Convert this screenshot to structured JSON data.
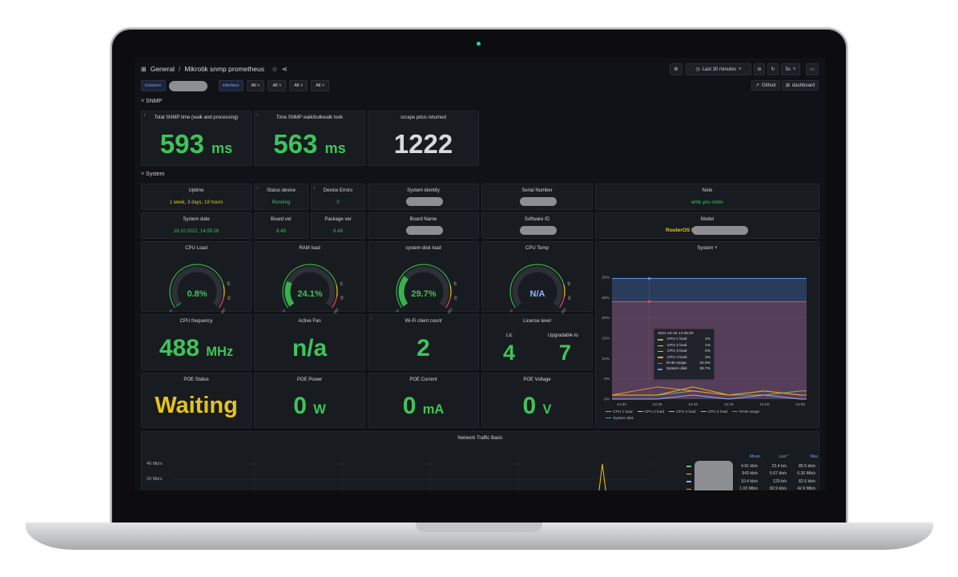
{
  "breadcrumb": {
    "folder": "General",
    "separator": "/",
    "dashboard": "Mikrotik snmp prometheus"
  },
  "toolbar": {
    "time_range": "Last 30 minutes",
    "refresh": "5s",
    "github": "Github",
    "dashboard": "dashboard"
  },
  "variables": [
    {
      "label": "instance",
      "value": ""
    },
    {
      "label": "interface",
      "value": "All"
    },
    {
      "label": "",
      "value": "All"
    },
    {
      "label": "",
      "value": "All"
    },
    {
      "label": "",
      "value": "All"
    }
  ],
  "rows": {
    "snmp": "SNMP",
    "system": "System"
  },
  "snmp_panels": [
    {
      "title": "Total SNMP time (walk and processing)",
      "value": "593",
      "unit": "ms"
    },
    {
      "title": "Time SNMP walk/bulkwalk took",
      "value": "563",
      "unit": "ms"
    },
    {
      "title": "scrape pdus returned",
      "value": "1222",
      "unit": ""
    }
  ],
  "stat_row1": {
    "uptime": {
      "title": "Uptime",
      "value": "1 week, 3 days, 18 hours"
    },
    "status": {
      "title": "Status device",
      "value": "Running"
    },
    "errors": {
      "title": "Device Errors",
      "value": "0"
    },
    "identity": {
      "title": "System identity"
    },
    "serial": {
      "title": "Serial Number"
    },
    "note": {
      "title": "Note",
      "value": "write you notes"
    }
  },
  "stat_row2": {
    "date": {
      "title": "System date",
      "value": "18.10.2021, 14:59:26"
    },
    "board_ver": {
      "title": "Board ver",
      "value": "6.49"
    },
    "package_ver": {
      "title": "Package ver",
      "value": "6.49"
    },
    "board_name": {
      "title": "Board Name"
    },
    "software_id": {
      "title": "Software ID"
    },
    "model": {
      "title": "Model",
      "value": "RouterOS R"
    }
  },
  "gauges": [
    {
      "title": "CPU Load",
      "value": "0.8%",
      "fraction": 0.008,
      "ticks": [
        "0",
        "80",
        "90",
        "100"
      ]
    },
    {
      "title": "RAM load",
      "value": "24.1%",
      "fraction": 0.241,
      "ticks": [
        "0",
        "60",
        "80",
        "100"
      ]
    },
    {
      "title": "system disk load",
      "value": "29.7%",
      "fraction": 0.297,
      "ticks": [
        "0",
        "80",
        "90",
        "100"
      ]
    },
    {
      "title": "CPU Temp",
      "value": "N/A",
      "fraction": 0,
      "ticks": [
        "0",
        "80",
        "90",
        "100"
      ]
    }
  ],
  "row4": {
    "cpu_freq": {
      "title": "CPU frequency",
      "value": "488",
      "unit": "MHz"
    },
    "fan": {
      "title": "Active Fan",
      "value": "n/a"
    },
    "wifi": {
      "title": "Wi-Fi client count",
      "value": "2"
    },
    "license": {
      "title": "License level",
      "lic_label": "Lic",
      "lic_value": "4",
      "upg_label": "Upgradable to",
      "upg_value": "7"
    }
  },
  "row5": {
    "poe_status": {
      "title": "POE Status",
      "value": "Waiting"
    },
    "poe_power": {
      "title": "POE Power",
      "value": "0",
      "unit": "W"
    },
    "poe_current": {
      "title": "POE Current",
      "value": "0",
      "unit": "mA"
    },
    "poe_voltage": {
      "title": "POE Voltage",
      "value": "0",
      "unit": "V"
    }
  },
  "system_chart": {
    "title": "System ˅",
    "tooltip_time": "2021-10-18 14:35:20",
    "tooltip": [
      {
        "name": "CPU 1 load",
        "value": "1%",
        "color": "#73bf69"
      },
      {
        "name": "CPU 2 load",
        "value": "1%",
        "color": "#f2cc0c"
      },
      {
        "name": "CPU 3 load",
        "value": "0%",
        "color": "#8ab8ff"
      },
      {
        "name": "CPU 4 load",
        "value": "3%",
        "color": "#ff9830"
      },
      {
        "name": "RAM usage",
        "value": "24.0%",
        "color": "#f2495c"
      },
      {
        "name": "System disk",
        "value": "29.7%",
        "color": "#5794f2"
      }
    ],
    "yticks": [
      "30%",
      "25%",
      "20%",
      "15%",
      "10%",
      "5%",
      "0%"
    ],
    "xticks": [
      "14:30",
      "14:35",
      "14:40",
      "14:45",
      "14:50",
      "14:55"
    ]
  },
  "chart_data": {
    "type": "area",
    "title": "System",
    "ylim": [
      0,
      30
    ],
    "x": [
      "14:30",
      "14:35",
      "14:40",
      "14:45",
      "14:50",
      "14:55"
    ],
    "series": [
      {
        "name": "System disk",
        "values": [
          29.7,
          29.7,
          29.7,
          29.7,
          29.7,
          29.7
        ]
      },
      {
        "name": "RAM usage",
        "values": [
          24.0,
          24.0,
          24.0,
          24.0,
          24.0,
          24.0
        ]
      },
      {
        "name": "CPU 1 load",
        "values": [
          1,
          1,
          2,
          1,
          1,
          2
        ]
      },
      {
        "name": "CPU 2 load",
        "values": [
          1,
          1,
          3,
          1,
          2,
          1
        ]
      },
      {
        "name": "CPU 3 load",
        "values": [
          0,
          0,
          1,
          0,
          1,
          0
        ]
      },
      {
        "name": "CPU 4 load",
        "values": [
          1,
          3,
          2,
          1,
          2,
          1
        ]
      }
    ]
  },
  "traffic": {
    "title": "Network Traffic Basic",
    "yticks": [
      "40 Mb/s",
      "20 Mb/s"
    ],
    "headers": [
      "Mean",
      "Last *",
      "Max"
    ],
    "rows": [
      {
        "mean": "4.91 kb/s",
        "last": "22.4 b/s",
        "max": "85.5 kb/s",
        "color": "#73bf69"
      },
      {
        "mean": "543 kb/s",
        "last": "5.67 kb/s",
        "max": "6.30 Mb/s",
        "color": "#f2cc0c"
      },
      {
        "mean": "10.4 kb/s",
        "last": "129 b/s",
        "max": "82.6 kb/s",
        "color": "#8ab8ff"
      },
      {
        "mean": "1.03 Mb/s",
        "last": "82.9 kb/s",
        "max": "42.9 Mb/s",
        "color": "#ff9830"
      }
    ]
  }
}
